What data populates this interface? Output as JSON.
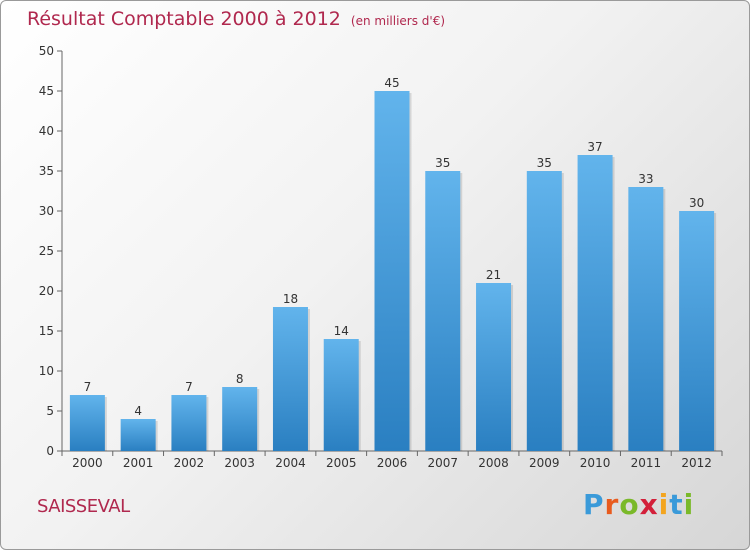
{
  "title": "Résultat Comptable 2000 à 2012",
  "subtitle": "(en milliers d'€)",
  "commune": "SAISSEVAL",
  "brand": {
    "letters": [
      "P",
      "r",
      "o",
      "x",
      "i",
      "t",
      "i"
    ],
    "colors": [
      "#3a9ad9",
      "#e85b1e",
      "#7ab929",
      "#d3203a",
      "#f3a51f",
      "#3a9ad9",
      "#7ab929"
    ]
  },
  "colors": {
    "title": "#b0284e",
    "bar_top": "#62b4ec",
    "bar_bottom": "#2a7fc1",
    "axis": "#666666",
    "grid": "#cfcfcf"
  },
  "chart_data": {
    "type": "bar",
    "categories": [
      "2000",
      "2001",
      "2002",
      "2003",
      "2004",
      "2005",
      "2006",
      "2007",
      "2008",
      "2009",
      "2010",
      "2011",
      "2012"
    ],
    "values": [
      7,
      4,
      7,
      8,
      18,
      14,
      45,
      35,
      21,
      35,
      37,
      33,
      30
    ],
    "ylim": [
      0,
      50
    ],
    "yticks": [
      0,
      5,
      10,
      15,
      20,
      25,
      30,
      35,
      40,
      45,
      50
    ],
    "grid": false,
    "legend": "none"
  }
}
